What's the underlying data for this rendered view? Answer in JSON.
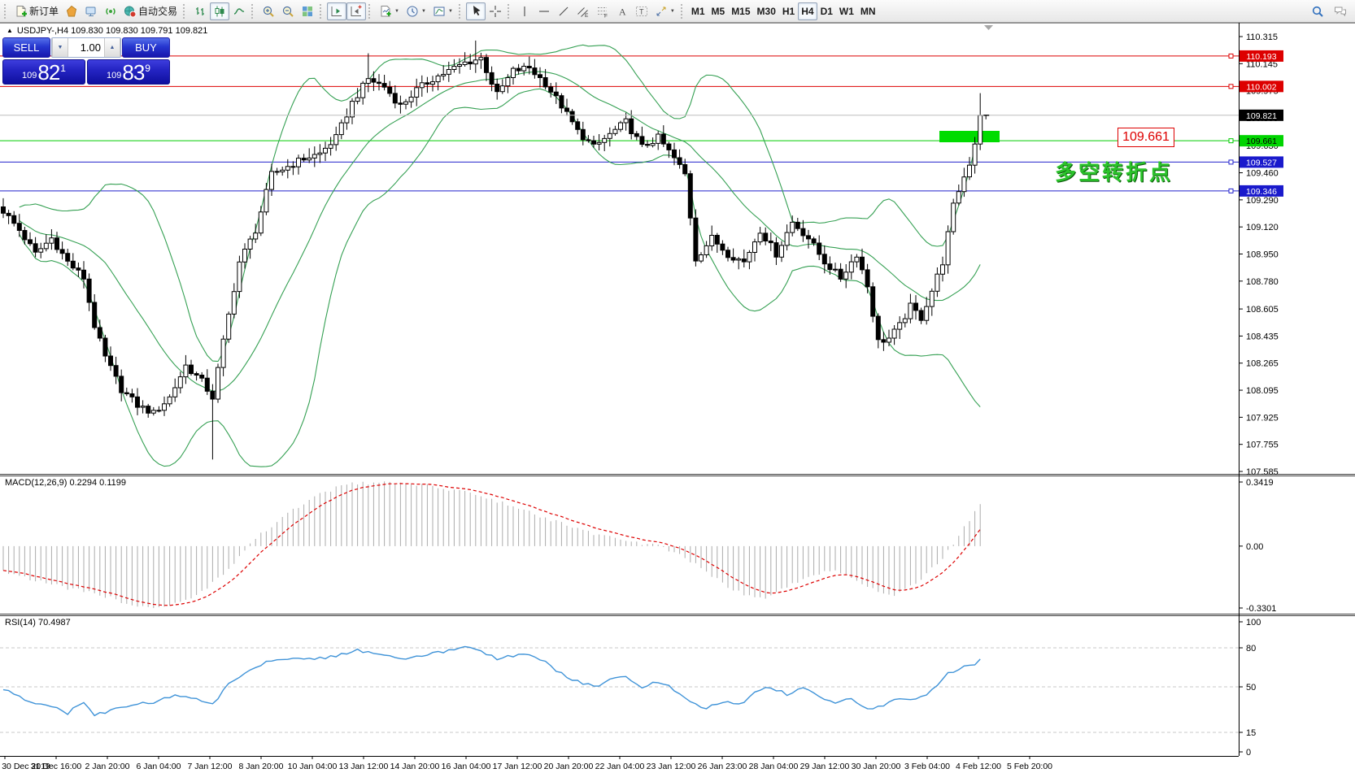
{
  "toolbar": {
    "groups": [
      {
        "items": [
          {
            "icon": "new-order-icon",
            "label": "新订单",
            "name": "new-order-button"
          },
          {
            "icon": "metaquotes-icon",
            "name": "metaquotes-community-button"
          },
          {
            "icon": "market-watch-icon",
            "name": "market-watch-button"
          },
          {
            "icon": "signals-icon",
            "name": "signals-button"
          },
          {
            "icon": "auto-trading-icon",
            "label": "自动交易",
            "name": "auto-trading-button"
          }
        ]
      },
      {
        "items": [
          {
            "icon": "bar-chart-icon",
            "name": "bar-chart-button"
          },
          {
            "icon": "candlestick-icon",
            "name": "candlestick-chart-button",
            "active": true
          },
          {
            "icon": "line-chart-icon",
            "name": "line-chart-button"
          }
        ]
      },
      {
        "items": [
          {
            "icon": "zoom-in-icon",
            "name": "zoom-in-button"
          },
          {
            "icon": "zoom-out-icon",
            "name": "zoom-out-button"
          },
          {
            "icon": "tile-windows-icon",
            "name": "tile-windows-button"
          }
        ]
      },
      {
        "items": [
          {
            "icon": "auto-scroll-icon",
            "name": "auto-scroll-button",
            "active": true
          },
          {
            "icon": "chart-shift-icon",
            "name": "chart-shift-button",
            "active": true
          }
        ]
      },
      {
        "items": [
          {
            "icon": "indicators-icon",
            "name": "indicators-list-button",
            "dropdown": true
          },
          {
            "icon": "periods-icon",
            "name": "periods-button",
            "dropdown": true
          },
          {
            "icon": "templates-icon",
            "name": "templates-button",
            "dropdown": true
          }
        ]
      },
      {
        "items": [
          {
            "icon": "cursor-icon",
            "name": "cursor-button",
            "active": true
          },
          {
            "icon": "crosshair-icon",
            "name": "crosshair-button"
          }
        ]
      },
      {
        "items": [
          {
            "icon": "vline-icon",
            "name": "vertical-line-button"
          },
          {
            "icon": "hline-icon",
            "name": "horizontal-line-button"
          },
          {
            "icon": "trendline-icon",
            "name": "trendline-button"
          },
          {
            "icon": "channel-icon",
            "name": "equidistant-channel-button"
          },
          {
            "icon": "fibonacci-icon",
            "name": "fibonacci-button"
          },
          {
            "icon": "text-icon",
            "name": "text-button"
          },
          {
            "icon": "label-icon",
            "name": "text-label-button"
          },
          {
            "icon": "arrows-icon",
            "name": "arrows-button",
            "dropdown": true
          }
        ]
      },
      {
        "type": "timeframes",
        "items": [
          {
            "label": "M1"
          },
          {
            "label": "M5"
          },
          {
            "label": "M15"
          },
          {
            "label": "M30"
          },
          {
            "label": "H1"
          },
          {
            "label": "H4",
            "active": true
          },
          {
            "label": "D1"
          },
          {
            "label": "W1"
          },
          {
            "label": "MN"
          }
        ]
      }
    ],
    "right": [
      {
        "icon": "search-icon",
        "name": "search-button"
      },
      {
        "icon": "chat-icon",
        "name": "community-chat-button"
      }
    ]
  },
  "symbol_bar": {
    "collapse_glyph": "▲",
    "text": "USDJPY-,H4  109.830 109.830 109.791 109.821"
  },
  "trade_panel": {
    "sell_label": "SELL",
    "buy_label": "BUY",
    "volume": "1.00",
    "spinner_down": "▼",
    "spinner_up": "▲",
    "sell_price": {
      "prefix": "109",
      "big": "82",
      "sup": "1"
    },
    "buy_price": {
      "prefix": "109",
      "big": "83",
      "sup": "9"
    }
  },
  "annotations": {
    "price_callout": "109.661",
    "note_text": "多空转折点",
    "note_color": "#2bc32b"
  },
  "chart_data": {
    "type": "candlestick",
    "symbol": "USDJPY-",
    "timeframe": "H4",
    "ohlc_current": {
      "open": 109.83,
      "high": 109.83,
      "low": 109.791,
      "close": 109.821
    },
    "ylim": [
      107.585,
      110.315
    ],
    "price_axis_ticks": [
      "110.315",
      "110.145",
      "109.975",
      "109.805",
      "109.630",
      "109.460",
      "109.290",
      "109.120",
      "108.950",
      "108.780",
      "108.605",
      "108.435",
      "108.265",
      "108.095",
      "107.925",
      "107.755",
      "107.585"
    ],
    "time_axis_labels": [
      "30 Dec 2019",
      "31 Dec 16:00",
      "2 Jan 20:00",
      "6 Jan 04:00",
      "7 Jan 12:00",
      "8 Jan 20:00",
      "10 Jan 04:00",
      "13 Jan 12:00",
      "14 Jan 20:00",
      "16 Jan 04:00",
      "17 Jan 12:00",
      "20 Jan 20:00",
      "22 Jan 04:00",
      "23 Jan 12:00",
      "26 Jan 23:00",
      "28 Jan 04:00",
      "29 Jan 12:00",
      "30 Jan 20:00",
      "3 Feb 04:00",
      "4 Feb 12:00",
      "5 Feb 20:00"
    ],
    "levels": [
      {
        "price": 110.193,
        "label": "110.193",
        "line_color": "#dd0000",
        "badge_bg": "#dd0000",
        "badge_text": "#ffffff"
      },
      {
        "price": 110.002,
        "label": "110.002",
        "line_color": "#dd0000",
        "badge_bg": "#dd0000",
        "badge_text": "#ffffff"
      },
      {
        "price": 109.661,
        "label": "109.661",
        "line_color": "#00cc00",
        "badge_bg": "#00d400",
        "badge_text": "#000000"
      },
      {
        "price": 109.527,
        "label": "109.527",
        "line_color": "#2222cc",
        "badge_bg": "#1a1acc",
        "badge_text": "#ffffff"
      },
      {
        "price": 109.346,
        "label": "109.346",
        "line_color": "#2222cc",
        "badge_bg": "#1a1acc",
        "badge_text": "#ffffff"
      }
    ],
    "bid_marker": {
      "price": 109.821,
      "label": "109.821",
      "line_color": "#bdbdbd",
      "badge_bg": "#000000",
      "badge_text": "#ffffff"
    },
    "green_zone": {
      "x": 1155,
      "y": 133,
      "w": 74,
      "h": 14,
      "color": "#00dc00"
    },
    "candle_count": 183,
    "last_close": 109.821,
    "close_anchors": [
      [
        0,
        109.22
      ],
      [
        3,
        109.1
      ],
      [
        6,
        108.95
      ],
      [
        9,
        109.05
      ],
      [
        12,
        108.9
      ],
      [
        15,
        108.8
      ],
      [
        17,
        108.5
      ],
      [
        19,
        108.3
      ],
      [
        22,
        108.1
      ],
      [
        25,
        108.0
      ],
      [
        28,
        107.95
      ],
      [
        31,
        108.05
      ],
      [
        34,
        108.25
      ],
      [
        37,
        108.15
      ],
      [
        39,
        108.05
      ],
      [
        41,
        108.4
      ],
      [
        44,
        108.9
      ],
      [
        47,
        109.1
      ],
      [
        50,
        109.45
      ],
      [
        53,
        109.5
      ],
      [
        56,
        109.55
      ],
      [
        59,
        109.58
      ],
      [
        62,
        109.68
      ],
      [
        65,
        109.9
      ],
      [
        68,
        110.05
      ],
      [
        71,
        110.0
      ],
      [
        74,
        109.88
      ],
      [
        77,
        109.98
      ],
      [
        80,
        110.05
      ],
      [
        83,
        110.1
      ],
      [
        86,
        110.15
      ],
      [
        89,
        110.18
      ],
      [
        92,
        109.95
      ],
      [
        95,
        110.1
      ],
      [
        98,
        110.12
      ],
      [
        101,
        110.02
      ],
      [
        104,
        109.88
      ],
      [
        107,
        109.72
      ],
      [
        110,
        109.62
      ],
      [
        113,
        109.7
      ],
      [
        116,
        109.78
      ],
      [
        119,
        109.62
      ],
      [
        122,
        109.68
      ],
      [
        125,
        109.55
      ],
      [
        127,
        109.45
      ],
      [
        129,
        108.92
      ],
      [
        132,
        109.05
      ],
      [
        135,
        108.95
      ],
      [
        138,
        108.9
      ],
      [
        141,
        109.1
      ],
      [
        144,
        108.95
      ],
      [
        147,
        109.15
      ],
      [
        150,
        109.05
      ],
      [
        153,
        108.9
      ],
      [
        156,
        108.8
      ],
      [
        159,
        108.95
      ],
      [
        161,
        108.75
      ],
      [
        163,
        108.4
      ],
      [
        165,
        108.42
      ],
      [
        167,
        108.5
      ],
      [
        169,
        108.62
      ],
      [
        171,
        108.55
      ],
      [
        173,
        108.72
      ],
      [
        175,
        108.9
      ],
      [
        177,
        109.25
      ],
      [
        178,
        109.35
      ],
      [
        180,
        109.52
      ],
      [
        181,
        109.65
      ],
      [
        182,
        109.82
      ]
    ],
    "wick_overrides": [
      {
        "i": 39,
        "low": 107.66
      },
      {
        "i": 68,
        "high": 110.21
      },
      {
        "i": 88,
        "high": 110.29
      },
      {
        "i": 182,
        "high": 109.96
      }
    ],
    "bollinger": {
      "period": 20,
      "deviation": 2,
      "color": "#35a053"
    },
    "macd": {
      "label": "MACD(12,26,9) 0.2294 0.1199",
      "value": 0.2294,
      "signal": 0.1199,
      "axis_ticks": [
        "0.3419",
        "0.00",
        "-0.3301"
      ],
      "axis_values": [
        0.3419,
        0.0,
        -0.3301
      ],
      "hist_color": "#ababab",
      "signal_color": "#dd0000",
      "anchors": [
        [
          0,
          -0.13
        ],
        [
          8,
          -0.2
        ],
        [
          18,
          -0.26
        ],
        [
          25,
          -0.32
        ],
        [
          30,
          -0.33
        ],
        [
          36,
          -0.27
        ],
        [
          42,
          -0.12
        ],
        [
          46,
          0.02
        ],
        [
          52,
          0.15
        ],
        [
          58,
          0.27
        ],
        [
          64,
          0.33
        ],
        [
          70,
          0.34
        ],
        [
          76,
          0.33
        ],
        [
          82,
          0.31
        ],
        [
          88,
          0.28
        ],
        [
          94,
          0.22
        ],
        [
          100,
          0.16
        ],
        [
          106,
          0.1
        ],
        [
          112,
          0.05
        ],
        [
          118,
          0.02
        ],
        [
          122,
          0.0
        ],
        [
          126,
          -0.04
        ],
        [
          130,
          -0.12
        ],
        [
          134,
          -0.2
        ],
        [
          138,
          -0.26
        ],
        [
          142,
          -0.28
        ],
        [
          146,
          -0.22
        ],
        [
          150,
          -0.16
        ],
        [
          154,
          -0.13
        ],
        [
          158,
          -0.16
        ],
        [
          162,
          -0.23
        ],
        [
          166,
          -0.26
        ],
        [
          170,
          -0.2
        ],
        [
          173,
          -0.12
        ],
        [
          176,
          -0.03
        ],
        [
          178,
          0.06
        ],
        [
          180,
          0.14
        ],
        [
          182,
          0.23
        ]
      ]
    },
    "rsi": {
      "label": "RSI(14) 70.4987",
      "value": 70.4987,
      "axis_ticks": [
        "100",
        "80",
        "50",
        "15",
        "0"
      ],
      "axis_values": [
        100,
        80,
        50,
        15,
        0
      ],
      "level_lines": [
        80,
        50,
        15
      ],
      "line_color": "#3f93d8",
      "anchors": [
        [
          0,
          48
        ],
        [
          4,
          40
        ],
        [
          8,
          36
        ],
        [
          12,
          30
        ],
        [
          15,
          38
        ],
        [
          17,
          28
        ],
        [
          20,
          32
        ],
        [
          24,
          36
        ],
        [
          28,
          38
        ],
        [
          32,
          44
        ],
        [
          36,
          40
        ],
        [
          39,
          36
        ],
        [
          42,
          52
        ],
        [
          46,
          64
        ],
        [
          50,
          70
        ],
        [
          54,
          73
        ],
        [
          58,
          71
        ],
        [
          62,
          74
        ],
        [
          66,
          78
        ],
        [
          70,
          75
        ],
        [
          74,
          71
        ],
        [
          78,
          74
        ],
        [
          82,
          77
        ],
        [
          86,
          80
        ],
        [
          89,
          78
        ],
        [
          92,
          71
        ],
        [
          95,
          74
        ],
        [
          98,
          75
        ],
        [
          101,
          69
        ],
        [
          104,
          60
        ],
        [
          107,
          54
        ],
        [
          110,
          50
        ],
        [
          113,
          55
        ],
        [
          116,
          58
        ],
        [
          119,
          50
        ],
        [
          122,
          54
        ],
        [
          125,
          48
        ],
        [
          128,
          38
        ],
        [
          131,
          33
        ],
        [
          134,
          39
        ],
        [
          137,
          36
        ],
        [
          140,
          45
        ],
        [
          143,
          50
        ],
        [
          146,
          44
        ],
        [
          149,
          50
        ],
        [
          152,
          42
        ],
        [
          155,
          38
        ],
        [
          158,
          42
        ],
        [
          161,
          32
        ],
        [
          164,
          35
        ],
        [
          167,
          42
        ],
        [
          170,
          40
        ],
        [
          173,
          47
        ],
        [
          176,
          60
        ],
        [
          179,
          66
        ],
        [
          181,
          68
        ],
        [
          182,
          70.5
        ]
      ]
    },
    "colors": {
      "candle_up": "#ffffff",
      "candle_down": "#000000",
      "candle_outline": "#000000",
      "background": "#ffffff"
    }
  }
}
